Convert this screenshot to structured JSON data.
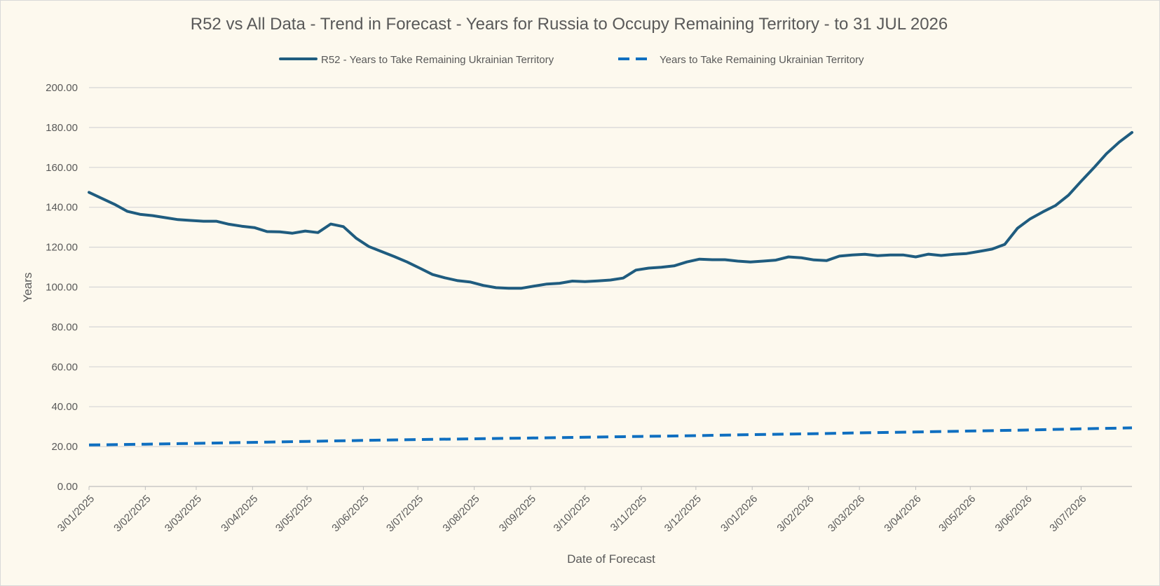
{
  "chart_data": {
    "type": "line",
    "title": "R52 vs All Data  - Trend in Forecast - Years for Russia to Occupy Remaining Territory - to 31 JUL 2026",
    "xlabel": "Date of Forecast",
    "ylabel": "Years",
    "ylim": [
      0,
      200
    ],
    "ytick_step": 20,
    "ytick_labels": [
      "0.00",
      "20.00",
      "40.00",
      "60.00",
      "80.00",
      "100.00",
      "120.00",
      "140.00",
      "160.00",
      "180.00",
      "200.00"
    ],
    "xtick_labels": [
      "3/01/2025",
      "3/02/2025",
      "3/03/2025",
      "3/04/2025",
      "3/05/2025",
      "3/06/2025",
      "3/07/2025",
      "3/08/2025",
      "3/09/2025",
      "3/10/2025",
      "3/11/2025",
      "3/12/2025",
      "3/01/2026",
      "3/02/2026",
      "3/03/2026",
      "3/04/2026",
      "3/05/2026",
      "3/06/2026",
      "3/07/2026"
    ],
    "xtick_dates": [
      "2025-01-03",
      "2025-02-03",
      "2025-03-03",
      "2025-04-03",
      "2025-05-03",
      "2025-06-03",
      "2025-07-03",
      "2025-08-03",
      "2025-09-03",
      "2025-10-03",
      "2025-11-03",
      "2025-12-03",
      "2026-01-03",
      "2026-02-03",
      "2026-03-03",
      "2026-04-03",
      "2026-05-03",
      "2026-06-03",
      "2026-07-03"
    ],
    "x_range": [
      "2025-01-03",
      "2026-07-31"
    ],
    "grid": "horizontal",
    "legend_position": "top",
    "series": [
      {
        "name": "R52 - Years to Take Remaining Ukrainian Territory",
        "color": "#1f5c7f",
        "style": "solid",
        "points": [
          [
            "2025-01-03",
            147.5
          ],
          [
            "2025-01-10",
            144.5
          ],
          [
            "2025-01-17",
            141.5
          ],
          [
            "2025-01-24",
            138.0
          ],
          [
            "2025-01-31",
            136.5
          ],
          [
            "2025-02-07",
            135.8
          ],
          [
            "2025-02-14",
            134.8
          ],
          [
            "2025-02-21",
            133.8
          ],
          [
            "2025-02-28",
            133.4
          ],
          [
            "2025-03-07",
            133.0
          ],
          [
            "2025-03-14",
            133.0
          ],
          [
            "2025-03-21",
            131.5
          ],
          [
            "2025-03-28",
            130.5
          ],
          [
            "2025-04-04",
            129.8
          ],
          [
            "2025-04-11",
            127.8
          ],
          [
            "2025-04-18",
            127.7
          ],
          [
            "2025-04-25",
            127.0
          ],
          [
            "2025-05-02",
            128.1
          ],
          [
            "2025-05-09",
            127.3
          ],
          [
            "2025-05-16",
            131.6
          ],
          [
            "2025-05-23",
            130.3
          ],
          [
            "2025-05-30",
            124.5
          ],
          [
            "2025-06-06",
            120.3
          ],
          [
            "2025-06-13",
            117.8
          ],
          [
            "2025-06-20",
            115.3
          ],
          [
            "2025-06-27",
            112.6
          ],
          [
            "2025-07-04",
            109.5
          ],
          [
            "2025-07-11",
            106.3
          ],
          [
            "2025-07-18",
            104.6
          ],
          [
            "2025-07-25",
            103.2
          ],
          [
            "2025-08-01",
            102.5
          ],
          [
            "2025-08-08",
            100.8
          ],
          [
            "2025-08-15",
            99.7
          ],
          [
            "2025-08-22",
            99.4
          ],
          [
            "2025-08-29",
            99.4
          ],
          [
            "2025-09-05",
            100.5
          ],
          [
            "2025-09-12",
            101.5
          ],
          [
            "2025-09-19",
            101.9
          ],
          [
            "2025-09-26",
            103.0
          ],
          [
            "2025-10-03",
            102.7
          ],
          [
            "2025-10-10",
            103.1
          ],
          [
            "2025-10-17",
            103.5
          ],
          [
            "2025-10-24",
            104.5
          ],
          [
            "2025-10-31",
            108.5
          ],
          [
            "2025-11-07",
            109.5
          ],
          [
            "2025-11-14",
            109.9
          ],
          [
            "2025-11-21",
            110.6
          ],
          [
            "2025-11-28",
            112.6
          ],
          [
            "2025-12-05",
            114.0
          ],
          [
            "2025-12-12",
            113.7
          ],
          [
            "2025-12-19",
            113.7
          ],
          [
            "2025-12-26",
            113.0
          ],
          [
            "2026-01-02",
            112.6
          ],
          [
            "2026-01-09",
            113.0
          ],
          [
            "2026-01-16",
            113.5
          ],
          [
            "2026-01-23",
            115.1
          ],
          [
            "2026-01-30",
            114.7
          ],
          [
            "2026-02-06",
            113.6
          ],
          [
            "2026-02-13",
            113.3
          ],
          [
            "2026-02-20",
            115.5
          ],
          [
            "2026-02-27",
            116.1
          ],
          [
            "2026-03-06",
            116.4
          ],
          [
            "2026-03-13",
            115.7
          ],
          [
            "2026-03-20",
            116.1
          ],
          [
            "2026-03-27",
            116.1
          ],
          [
            "2026-04-03",
            115.1
          ],
          [
            "2026-04-10",
            116.5
          ],
          [
            "2026-04-17",
            115.8
          ],
          [
            "2026-04-24",
            116.4
          ],
          [
            "2026-05-01",
            116.8
          ],
          [
            "2026-05-08",
            117.9
          ],
          [
            "2026-05-15",
            119.0
          ],
          [
            "2026-05-22",
            121.4
          ],
          [
            "2026-05-29",
            129.5
          ],
          [
            "2026-06-05",
            134.2
          ],
          [
            "2026-06-12",
            137.7
          ],
          [
            "2026-06-19",
            140.9
          ],
          [
            "2026-06-26",
            146.0
          ],
          [
            "2026-07-03",
            153.0
          ],
          [
            "2026-07-10",
            159.8
          ],
          [
            "2026-07-17",
            166.9
          ],
          [
            "2026-07-24",
            172.7
          ],
          [
            "2026-07-31",
            177.5
          ]
        ]
      },
      {
        "name": "Years to Take Remaining Ukrainian Territory",
        "color": "#0f6fc0",
        "style": "dashed",
        "points": [
          [
            "2025-01-03",
            20.8
          ],
          [
            "2025-02-03",
            21.2
          ],
          [
            "2025-03-03",
            21.6
          ],
          [
            "2025-04-03",
            22.1
          ],
          [
            "2025-05-03",
            22.6
          ],
          [
            "2025-06-03",
            23.1
          ],
          [
            "2025-07-03",
            23.5
          ],
          [
            "2025-08-03",
            23.9
          ],
          [
            "2025-09-03",
            24.3
          ],
          [
            "2025-10-03",
            24.7
          ],
          [
            "2025-11-03",
            25.1
          ],
          [
            "2025-12-03",
            25.5
          ],
          [
            "2026-01-03",
            26.0
          ],
          [
            "2026-02-03",
            26.4
          ],
          [
            "2026-03-03",
            26.9
          ],
          [
            "2026-04-03",
            27.3
          ],
          [
            "2026-05-03",
            27.8
          ],
          [
            "2026-06-03",
            28.3
          ],
          [
            "2026-07-03",
            28.9
          ],
          [
            "2026-07-31",
            29.4
          ]
        ]
      }
    ]
  }
}
